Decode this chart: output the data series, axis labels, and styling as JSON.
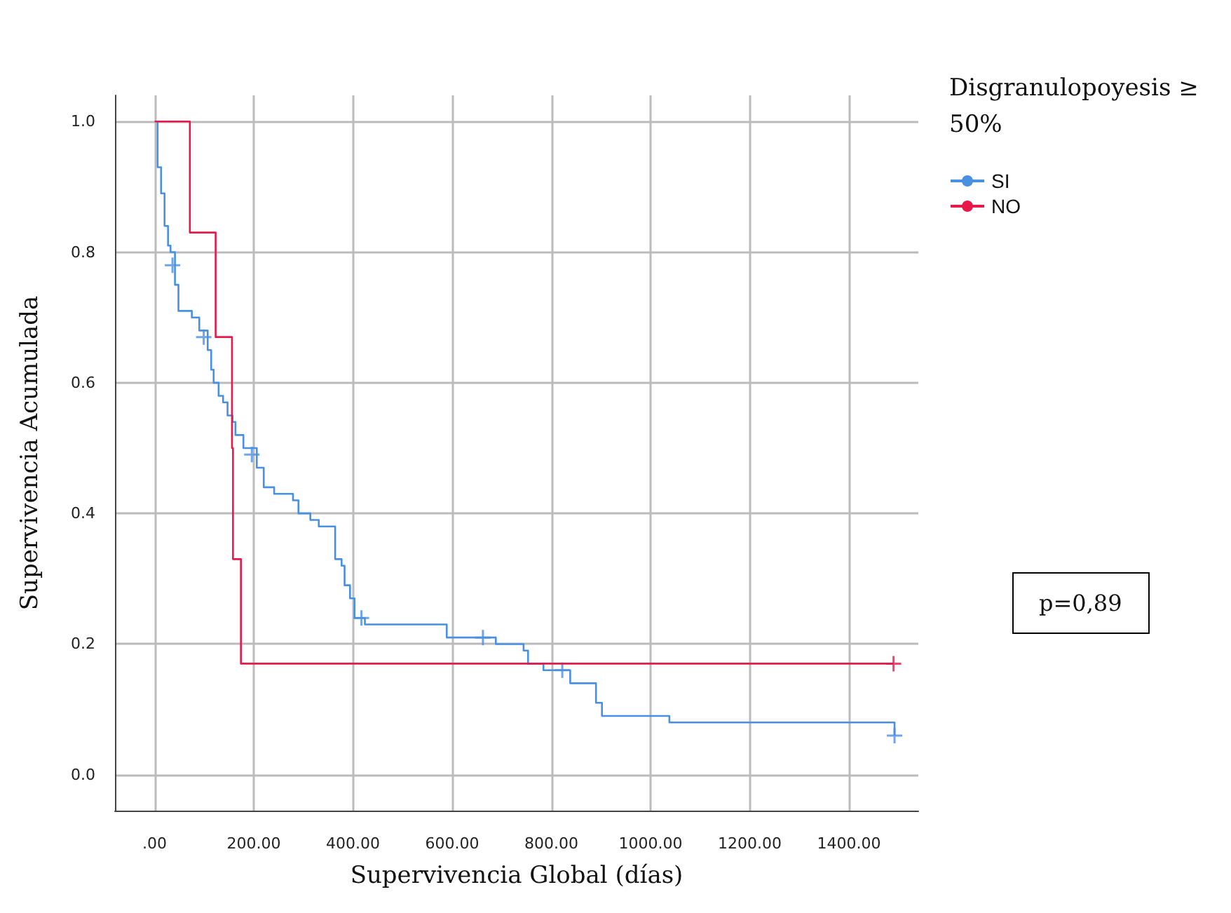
{
  "chart_data": {
    "type": "step",
    "xlabel": "Supervivencia Global (días)",
    "ylabel": "Supervivencia Acumulada",
    "legend_title": "Disgranulopoyesis ≥50%",
    "legend": "top right",
    "grid": true,
    "line_style": "solid",
    "marker": "none",
    "xlim": [
      -80,
      1540
    ],
    "ylim": [
      -0.055,
      1.04
    ],
    "xticks": [
      {
        "value": 0,
        "label": ".00"
      },
      {
        "value": 200,
        "label": "200.00"
      },
      {
        "value": 400,
        "label": "400.00"
      },
      {
        "value": 600,
        "label": "600.00"
      },
      {
        "value": 800,
        "label": "800.00"
      },
      {
        "value": 1000,
        "label": "1000.00"
      },
      {
        "value": 1200,
        "label": "1200.00"
      },
      {
        "value": 1400,
        "label": "1400.00"
      }
    ],
    "yticks": [
      {
        "value": 0,
        "label": "0.0"
      },
      {
        "value": 0.2,
        "label": "0.2"
      },
      {
        "value": 0.4,
        "label": "0.4"
      },
      {
        "value": 0.6,
        "label": "0.6"
      },
      {
        "value": 0.8,
        "label": "0.8"
      },
      {
        "value": 1,
        "label": "1.0"
      }
    ],
    "annotations": [
      "p=0,89"
    ],
    "series": [
      {
        "name": "SI",
        "color": "#4a90e2",
        "x": [
          4,
          6,
          13,
          20,
          27,
          32,
          41,
          48,
          75,
          90,
          107,
          114,
          119,
          129,
          138,
          147,
          157,
          163,
          179,
          206,
          220,
          241,
          279,
          290,
          314,
          331,
          364,
          377,
          383,
          394,
          403,
          424,
          589,
          688,
          744,
          753,
          784,
          838,
          890,
          902,
          1038,
          1492
        ],
        "values": [
          1.0,
          0.93,
          0.89,
          0.84,
          0.81,
          0.8,
          0.75,
          0.71,
          0.7,
          0.68,
          0.65,
          0.62,
          0.6,
          0.58,
          0.57,
          0.55,
          0.54,
          0.52,
          0.5,
          0.47,
          0.44,
          0.43,
          0.42,
          0.4,
          0.39,
          0.38,
          0.33,
          0.32,
          0.29,
          0.27,
          0.24,
          0.23,
          0.21,
          0.2,
          0.19,
          0.17,
          0.16,
          0.14,
          0.11,
          0.09,
          0.08,
          0.06
        ]
      },
      {
        "name": "NO",
        "color": "#e8194a",
        "x": [
          0,
          71,
          123,
          156,
          158,
          174,
          1490
        ],
        "values": [
          1.0,
          0.83,
          0.67,
          0.5,
          0.33,
          0.17,
          0.17
        ]
      },
      {
        "type": "scatter",
        "marker": "cross",
        "color": "#4a90e2",
        "x": [
          36,
          99,
          196,
          417,
          662,
          822,
          1492
        ],
        "values": [
          0.78,
          0.67,
          0.49,
          0.24,
          0.21,
          0.16,
          0.06
        ]
      },
      {
        "type": "scatter",
        "marker": "cross",
        "color": "#e8194a",
        "x": [
          1490
        ],
        "values": [
          0.17
        ]
      }
    ]
  }
}
